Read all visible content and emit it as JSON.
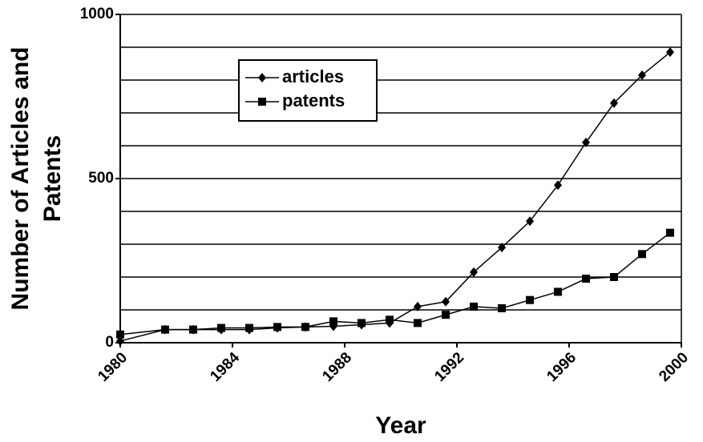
{
  "chart_data": {
    "type": "line",
    "x_label": "Year",
    "y_label": "Number of Articles and Patents",
    "x": [
      1980,
      1981.6,
      1982.6,
      1983.6,
      1984.6,
      1985.6,
      1986.6,
      1987.6,
      1988.6,
      1989.6,
      1990.6,
      1991.6,
      1992.6,
      1993.6,
      1994.6,
      1995.6,
      1996.6,
      1997.6,
      1998.6,
      1999.6
    ],
    "series": [
      {
        "name": "articles",
        "color": "#000000",
        "marker": "diamond",
        "values": [
          5,
          40,
          40,
          40,
          40,
          45,
          48,
          50,
          55,
          60,
          110,
          125,
          215,
          290,
          370,
          480,
          610,
          730,
          815,
          885
        ]
      },
      {
        "name": "patents",
        "color": "#000000",
        "marker": "square",
        "values": [
          25,
          40,
          40,
          45,
          45,
          48,
          48,
          65,
          60,
          70,
          60,
          85,
          110,
          105,
          130,
          155,
          195,
          200,
          270,
          335
        ]
      }
    ],
    "xlim": [
      1980,
      2000
    ],
    "xticks": [
      1980,
      1984,
      1988,
      1992,
      1996,
      2000
    ],
    "ylim": [
      0,
      1000
    ],
    "yticks": [
      0,
      500,
      1000
    ],
    "ygrid": [
      100,
      200,
      300,
      400,
      500,
      600,
      700,
      800,
      900,
      1000
    ],
    "legend": "upper left"
  }
}
